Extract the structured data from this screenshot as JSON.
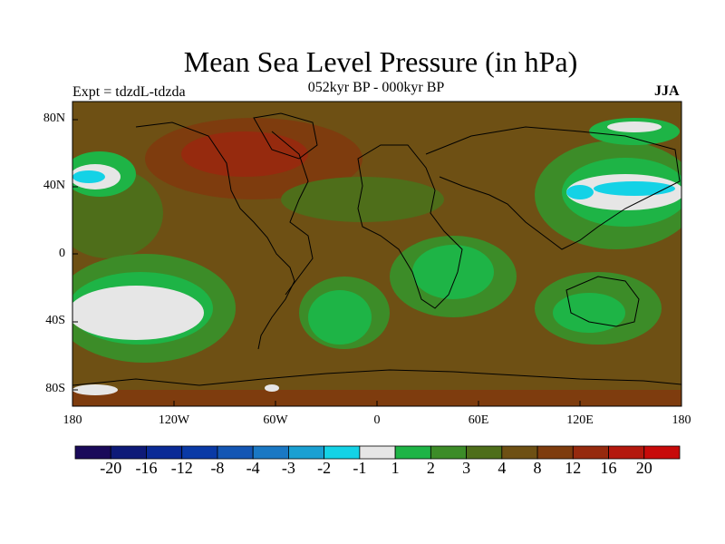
{
  "title": "Mean Sea Level Pressure (in hPa)",
  "subtitle": "052kyr BP - 000kyr BP",
  "experiment_label": "Expt = tdzdL-tdzda",
  "season_label": "JJA",
  "lat_ticks": [
    "80N",
    "40N",
    "0",
    "40S",
    "80S"
  ],
  "lon_ticks": [
    "180",
    "120W",
    "60W",
    "0",
    "60E",
    "120E",
    "180"
  ],
  "colorbar": {
    "colors": [
      "#1a0a5a",
      "#0e1a78",
      "#0a2a96",
      "#0a3aa6",
      "#1456b4",
      "#1a78c4",
      "#1aa0d2",
      "#14d2e6",
      "#e6e6e6",
      "#1eb446",
      "#3c8c28",
      "#4e6e1a",
      "#6e5014",
      "#7e3c0e",
      "#962a0e",
      "#b4180e",
      "#c80a0a"
    ],
    "labels": [
      "-20",
      "-16",
      "-12",
      "-8",
      "-4",
      "-3",
      "-2",
      "-1",
      "1",
      "2",
      "3",
      "4",
      "8",
      "12",
      "16",
      "20"
    ]
  },
  "colors": {
    "background": "#6e5014",
    "green_light": "#1eb446",
    "green_mid": "#3c8c28",
    "green_dark": "#4e6e1a",
    "cyan": "#14d2e6",
    "gray": "#e6e6e6",
    "red_brown": "#7e3c0e",
    "red": "#962a0e"
  }
}
